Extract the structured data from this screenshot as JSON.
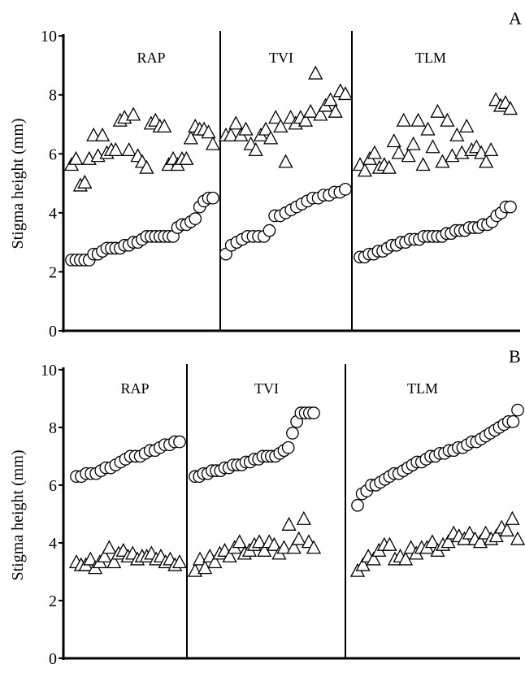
{
  "chart_data": [
    {
      "panel": "A",
      "type": "scatter",
      "ylabel": "Stigma height (mm)",
      "ylim": [
        0,
        10
      ],
      "yticks": [
        0,
        2,
        4,
        6,
        8,
        10
      ],
      "groups": [
        {
          "name": "RAP",
          "series": [
            {
              "marker": "triangle",
              "values": [
                5.6,
                5.8,
                4.9,
                5.0,
                5.8,
                6.6,
                5.9,
                6.6,
                6.0,
                6.1,
                6.1,
                7.1,
                7.2,
                6.1,
                7.3,
                5.9,
                5.7,
                5.5,
                7.0,
                7.1,
                6.9,
                6.9,
                5.6,
                5.8,
                5.6,
                5.8,
                5.8,
                6.5,
                6.9,
                6.8,
                6.8,
                6.7,
                6.3
              ]
            },
            {
              "marker": "circle",
              "values": [
                2.4,
                2.4,
                2.4,
                2.4,
                2.4,
                2.6,
                2.6,
                2.7,
                2.8,
                2.8,
                2.8,
                2.8,
                2.9,
                2.9,
                3.0,
                3.0,
                3.1,
                3.2,
                3.2,
                3.2,
                3.2,
                3.2,
                3.2,
                3.2,
                3.5,
                3.6,
                3.6,
                3.7,
                3.8,
                4.2,
                4.4,
                4.5,
                4.5
              ]
            }
          ]
        },
        {
          "name": "TVI",
          "series": [
            {
              "marker": "triangle",
              "values": [
                6.6,
                6.6,
                7.0,
                6.6,
                6.8,
                6.3,
                6.1,
                6.6,
                6.8,
                6.5,
                7.2,
                6.9,
                5.7,
                7.2,
                7.0,
                7.2,
                7.1,
                7.4,
                8.7,
                7.3,
                7.6,
                7.8,
                7.4,
                8.1,
                8.0
              ]
            },
            {
              "marker": "circle",
              "values": [
                2.6,
                2.9,
                3.0,
                3.1,
                3.2,
                3.2,
                3.2,
                3.2,
                3.4,
                3.9,
                3.9,
                4.0,
                4.1,
                4.2,
                4.3,
                4.4,
                4.5,
                4.5,
                4.6,
                4.6,
                4.7,
                4.7,
                4.8
              ]
            }
          ]
        },
        {
          "name": "TLM",
          "series": [
            {
              "marker": "triangle",
              "values": [
                5.6,
                5.4,
                5.8,
                6.0,
                5.5,
                5.6,
                5.5,
                6.4,
                6.0,
                7.1,
                5.9,
                6.3,
                7.1,
                5.6,
                6.8,
                6.2,
                7.4,
                5.7,
                7.1,
                5.9,
                6.6,
                6.0,
                6.9,
                6.1,
                6.2,
                6.0,
                5.7,
                6.1,
                7.8,
                7.6,
                7.7,
                7.5
              ]
            },
            {
              "marker": "circle",
              "values": [
                2.5,
                2.5,
                2.6,
                2.6,
                2.7,
                2.7,
                2.8,
                2.9,
                2.9,
                3.0,
                3.0,
                3.1,
                3.1,
                3.1,
                3.2,
                3.2,
                3.2,
                3.2,
                3.2,
                3.3,
                3.3,
                3.4,
                3.4,
                3.4,
                3.5,
                3.5,
                3.5,
                3.6,
                3.6,
                3.7,
                3.9,
                4.0,
                4.2,
                4.2
              ]
            }
          ]
        }
      ]
    },
    {
      "panel": "B",
      "type": "scatter",
      "ylabel": "Stigma height (mm)",
      "ylim": [
        0,
        10
      ],
      "yticks": [
        0,
        2,
        4,
        6,
        8,
        10
      ],
      "groups": [
        {
          "name": "RAP",
          "series": [
            {
              "marker": "circle",
              "values": [
                6.3,
                6.3,
                6.4,
                6.4,
                6.4,
                6.5,
                6.6,
                6.6,
                6.7,
                6.8,
                6.9,
                7.0,
                7.0,
                7.0,
                7.1,
                7.2,
                7.2,
                7.3,
                7.4,
                7.4,
                7.5,
                7.5
              ]
            },
            {
              "marker": "triangle",
              "values": [
                3.3,
                3.2,
                3.2,
                3.4,
                3.1,
                3.3,
                3.5,
                3.8,
                3.3,
                3.6,
                3.7,
                3.5,
                3.6,
                3.4,
                3.5,
                3.5,
                3.6,
                3.4,
                3.5,
                3.3,
                3.4,
                3.2,
                3.3
              ]
            }
          ]
        },
        {
          "name": "TVI",
          "series": [
            {
              "marker": "circle",
              "values": [
                6.3,
                6.3,
                6.4,
                6.4,
                6.5,
                6.5,
                6.5,
                6.6,
                6.6,
                6.7,
                6.7,
                6.7,
                6.8,
                6.8,
                6.9,
                6.9,
                7.0,
                7.0,
                7.0,
                7.0,
                7.1,
                7.2,
                7.3,
                7.8,
                8.2,
                8.5,
                8.5,
                8.5,
                8.5
              ]
            },
            {
              "marker": "triangle",
              "values": [
                3.0,
                3.4,
                3.1,
                3.5,
                3.3,
                3.6,
                3.7,
                3.5,
                3.8,
                4.0,
                3.6,
                3.7,
                3.9,
                4.0,
                3.7,
                4.0,
                3.9,
                3.6,
                3.8,
                4.6,
                3.8,
                4.1,
                4.8,
                4.0,
                3.8
              ]
            }
          ]
        },
        {
          "name": "TLM",
          "series": [
            {
              "marker": "circle",
              "values": [
                5.3,
                5.7,
                5.8,
                6.0,
                6.0,
                6.1,
                6.2,
                6.3,
                6.4,
                6.4,
                6.5,
                6.6,
                6.7,
                6.8,
                6.8,
                6.9,
                7.0,
                7.0,
                7.1,
                7.1,
                7.2,
                7.2,
                7.3,
                7.3,
                7.4,
                7.5,
                7.5,
                7.6,
                7.7,
                7.8,
                7.9,
                8.0,
                8.1,
                8.2,
                8.2,
                8.6
              ]
            },
            {
              "marker": "triangle",
              "values": [
                3.0,
                3.2,
                3.5,
                3.4,
                3.7,
                3.9,
                3.9,
                3.4,
                3.5,
                3.4,
                3.8,
                3.6,
                3.8,
                3.8,
                4.0,
                3.7,
                3.9,
                4.0,
                4.3,
                4.2,
                4.1,
                4.3,
                4.1,
                4.0,
                4.3,
                4.1,
                4.2,
                4.5,
                4.4,
                4.8,
                4.1
              ]
            }
          ]
        }
      ]
    }
  ]
}
